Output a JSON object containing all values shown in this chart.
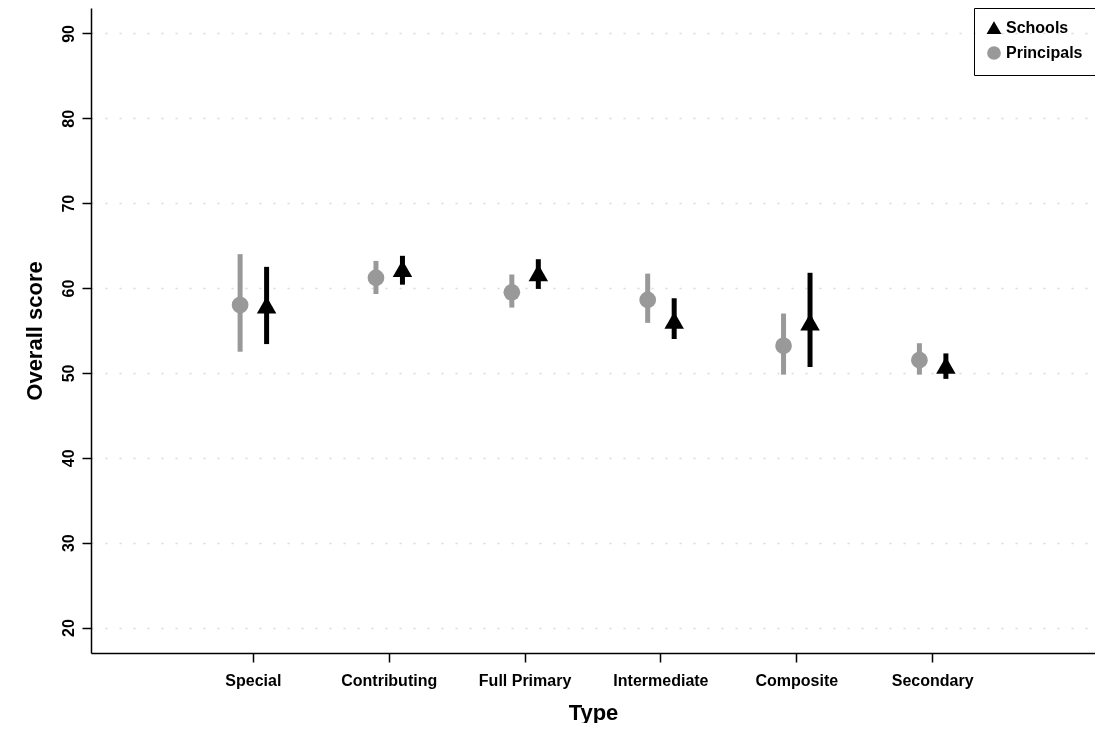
{
  "chart_data": {
    "type": "scatter",
    "xlabel": "Type",
    "ylabel": "Overall score",
    "categories": [
      "Special",
      "Contributing",
      "Full Primary",
      "Intermediate",
      "Composite",
      "Secondary"
    ],
    "series": [
      {
        "name": "Schools",
        "color": "#000000",
        "marker": "triangle",
        "values": [
          58.0,
          62.3,
          61.8,
          56.2,
          56.0,
          50.9
        ],
        "errors": [
          [
            53.4,
            62.5
          ],
          [
            60.4,
            63.8
          ],
          [
            59.9,
            63.4
          ],
          [
            54.0,
            58.8
          ],
          [
            50.7,
            61.8
          ],
          [
            49.3,
            52.3
          ]
        ]
      },
      {
        "name": "Principals",
        "color": "#999999",
        "marker": "circle",
        "values": [
          58.0,
          61.2,
          59.5,
          58.6,
          53.2,
          51.5
        ],
        "errors": [
          [
            52.5,
            64.0
          ],
          [
            59.3,
            63.2
          ],
          [
            57.7,
            61.6
          ],
          [
            55.9,
            61.7
          ],
          [
            49.8,
            57.0
          ],
          [
            49.8,
            53.5
          ]
        ]
      }
    ],
    "ylim": [
      17,
      93
    ],
    "yticks": [
      20,
      30,
      40,
      50,
      60,
      70,
      80,
      90
    ],
    "grid": "y",
    "legend": "top right"
  }
}
